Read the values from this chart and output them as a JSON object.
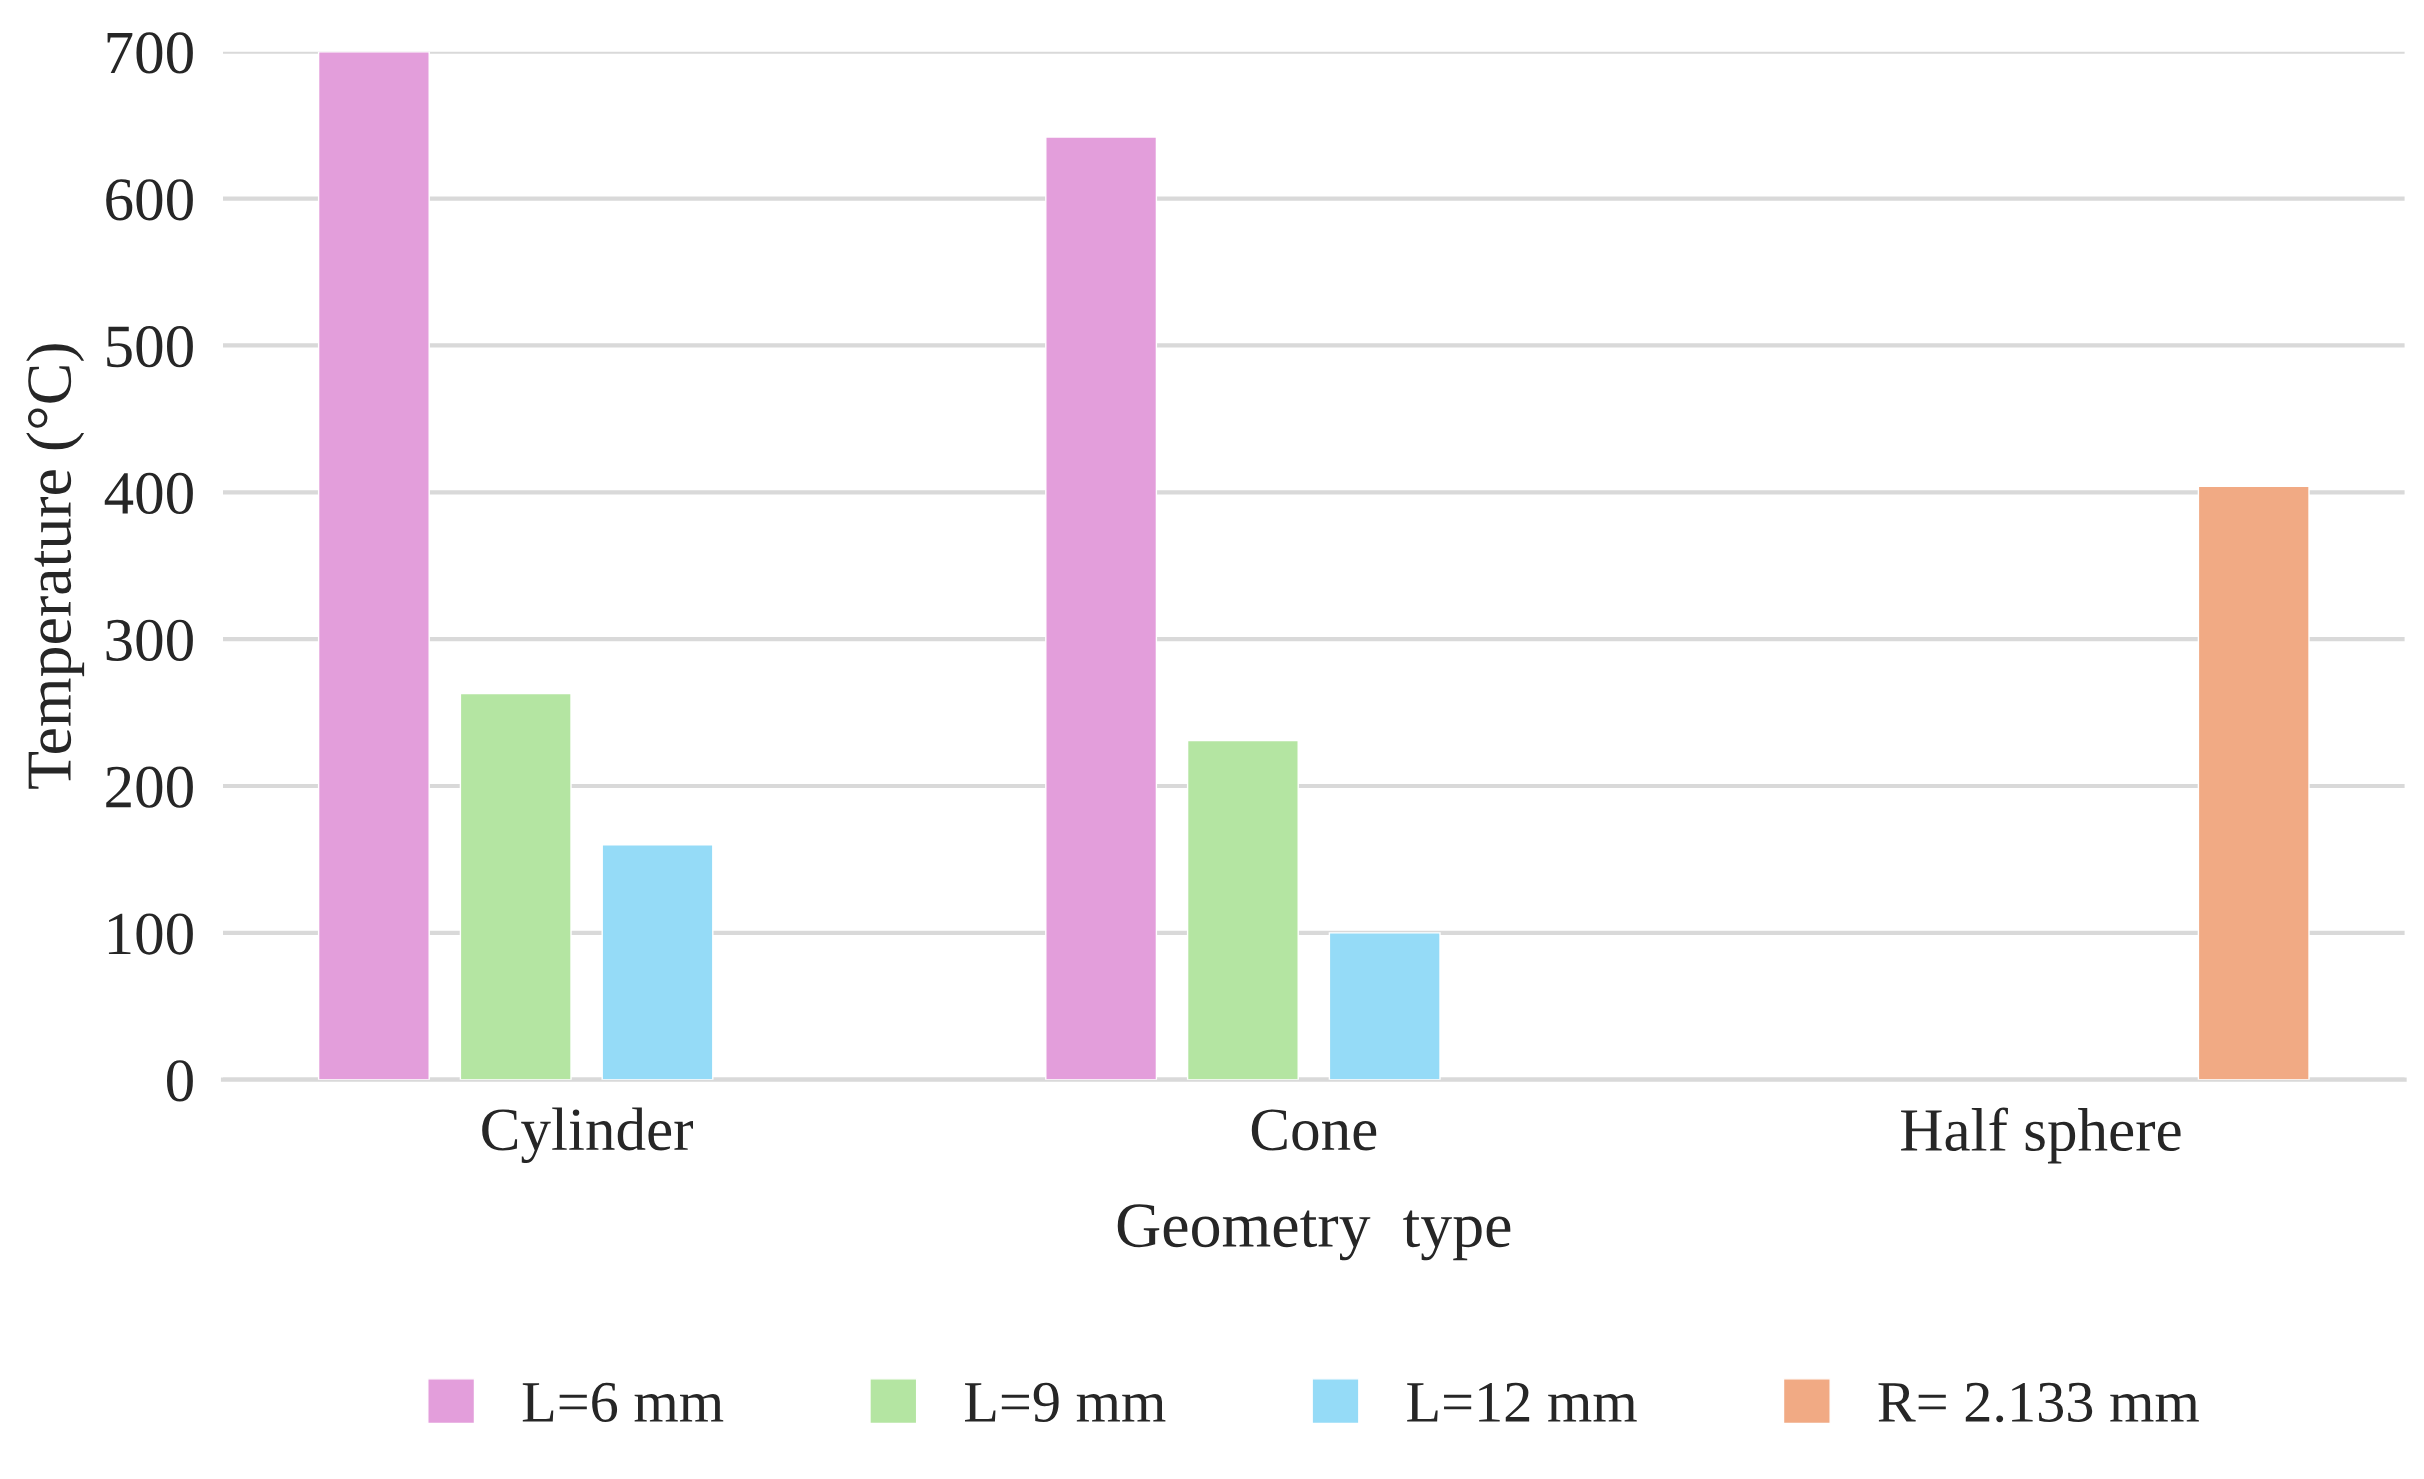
{
  "chart_data": {
    "type": "bar",
    "xlabel": "Geometry  type",
    "ylabel": "Temperature (°C)",
    "categories": [
      "Cylinder",
      "Cone",
      "Half sphere"
    ],
    "series": [
      {
        "name": "L=6 mm",
        "color": "#e39edb",
        "values": [
          700,
          642,
          null
        ]
      },
      {
        "name": "L=9 mm",
        "color": "#b4e5a2",
        "values": [
          263,
          231,
          null
        ]
      },
      {
        "name": "L=12 mm",
        "color": "#95dbf7",
        "values": [
          160,
          100,
          null
        ]
      },
      {
        "name": "R= 2.133 mm",
        "color": "#f1aa84",
        "values": [
          null,
          null,
          404
        ]
      }
    ],
    "ylim": [
      0,
      700
    ],
    "yticks": [
      0,
      100,
      200,
      300,
      400,
      500,
      600,
      700
    ],
    "grid": "y",
    "legend": "bottom"
  }
}
